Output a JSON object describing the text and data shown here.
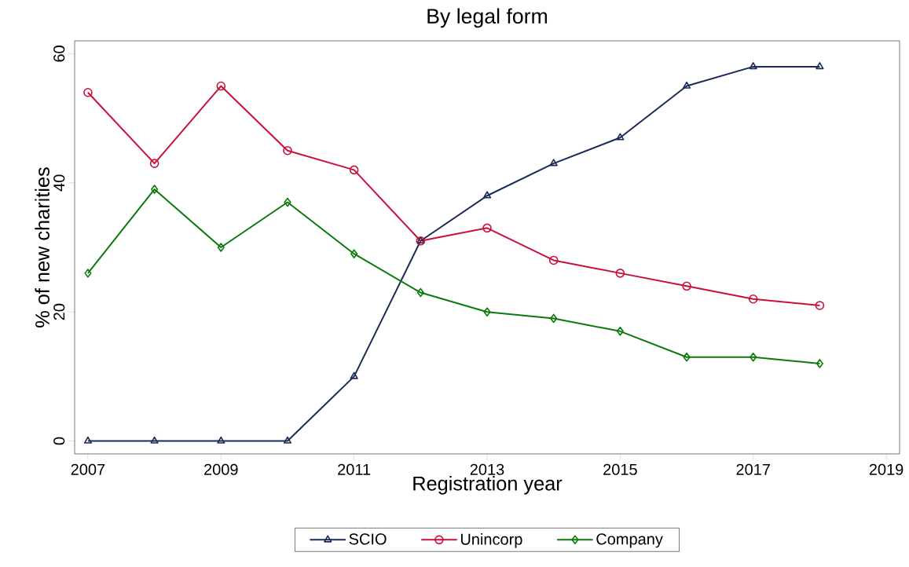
{
  "chart_data": {
    "type": "line",
    "title": "By legal form",
    "xlabel": "Registration year",
    "ylabel": "% of new charities",
    "x": [
      2007,
      2008,
      2009,
      2010,
      2011,
      2012,
      2013,
      2014,
      2015,
      2016,
      2017,
      2018
    ],
    "series": [
      {
        "name": "SCIO",
        "color": "#1a2b57",
        "marker": "triangle",
        "values": [
          0,
          0,
          0,
          0,
          10,
          31,
          38,
          43,
          47,
          55,
          58,
          58
        ]
      },
      {
        "name": "Unincorp",
        "color": "#c8103a",
        "marker": "circle",
        "values": [
          54,
          43,
          55,
          45,
          42,
          31,
          33,
          28,
          26,
          24,
          22,
          21
        ]
      },
      {
        "name": "Company",
        "color": "#0b7a0b",
        "marker": "diamond",
        "values": [
          26,
          39,
          30,
          37,
          29,
          23,
          20,
          19,
          17,
          13,
          13,
          12
        ]
      }
    ],
    "xlim": [
      2006.8,
      2019.2
    ],
    "ylim": [
      -2,
      62
    ],
    "xticks": [
      2007,
      2009,
      2011,
      2013,
      2015,
      2017,
      2019
    ],
    "yticks": [
      0,
      20,
      40,
      60
    ],
    "grid": false,
    "legend": "bottom",
    "line_style": "solid"
  }
}
